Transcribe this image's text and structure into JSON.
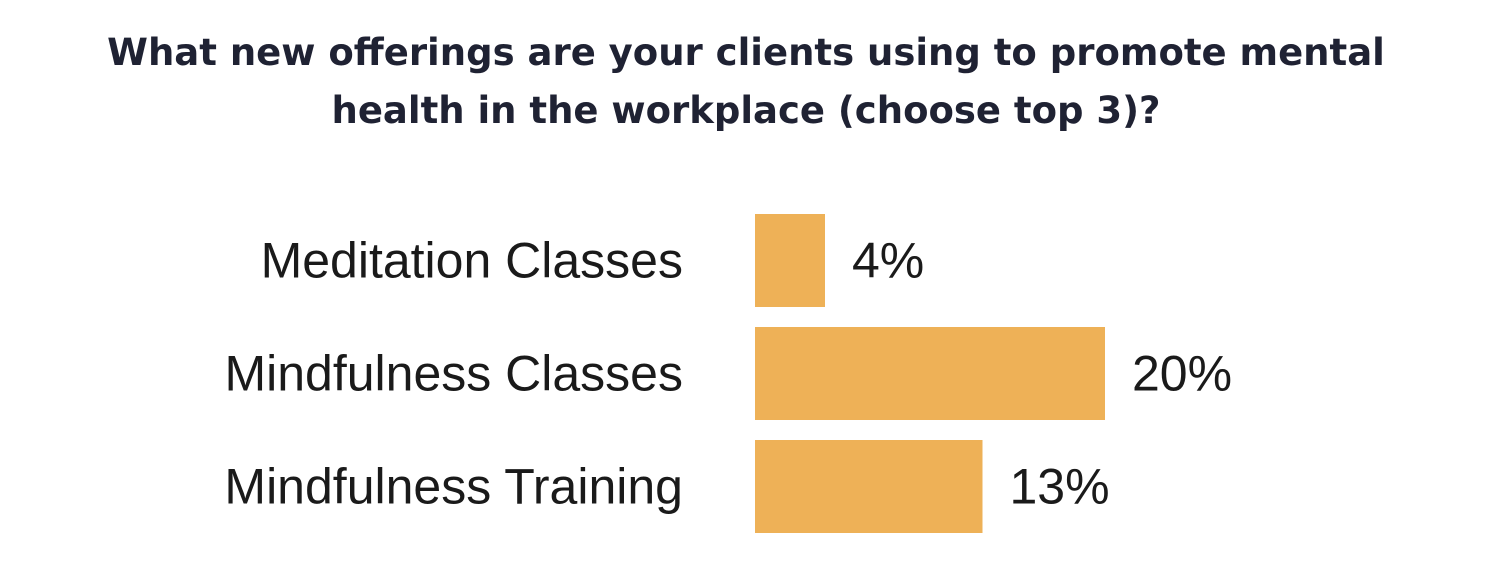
{
  "chart_data": {
    "type": "bar",
    "orientation": "horizontal",
    "title_lines": [
      "What new offerings are your clients using to promote mental",
      "health in the workplace (choose top 3)?"
    ],
    "categories": [
      "Meditation Classes",
      "Mindfulness Classes",
      "Mindfulness Training"
    ],
    "values": [
      4,
      20,
      13
    ],
    "value_labels": [
      "4%",
      "20%",
      "13%"
    ],
    "unit": "%",
    "bar_color": "#EEB157",
    "grid": false,
    "legend": "none"
  }
}
